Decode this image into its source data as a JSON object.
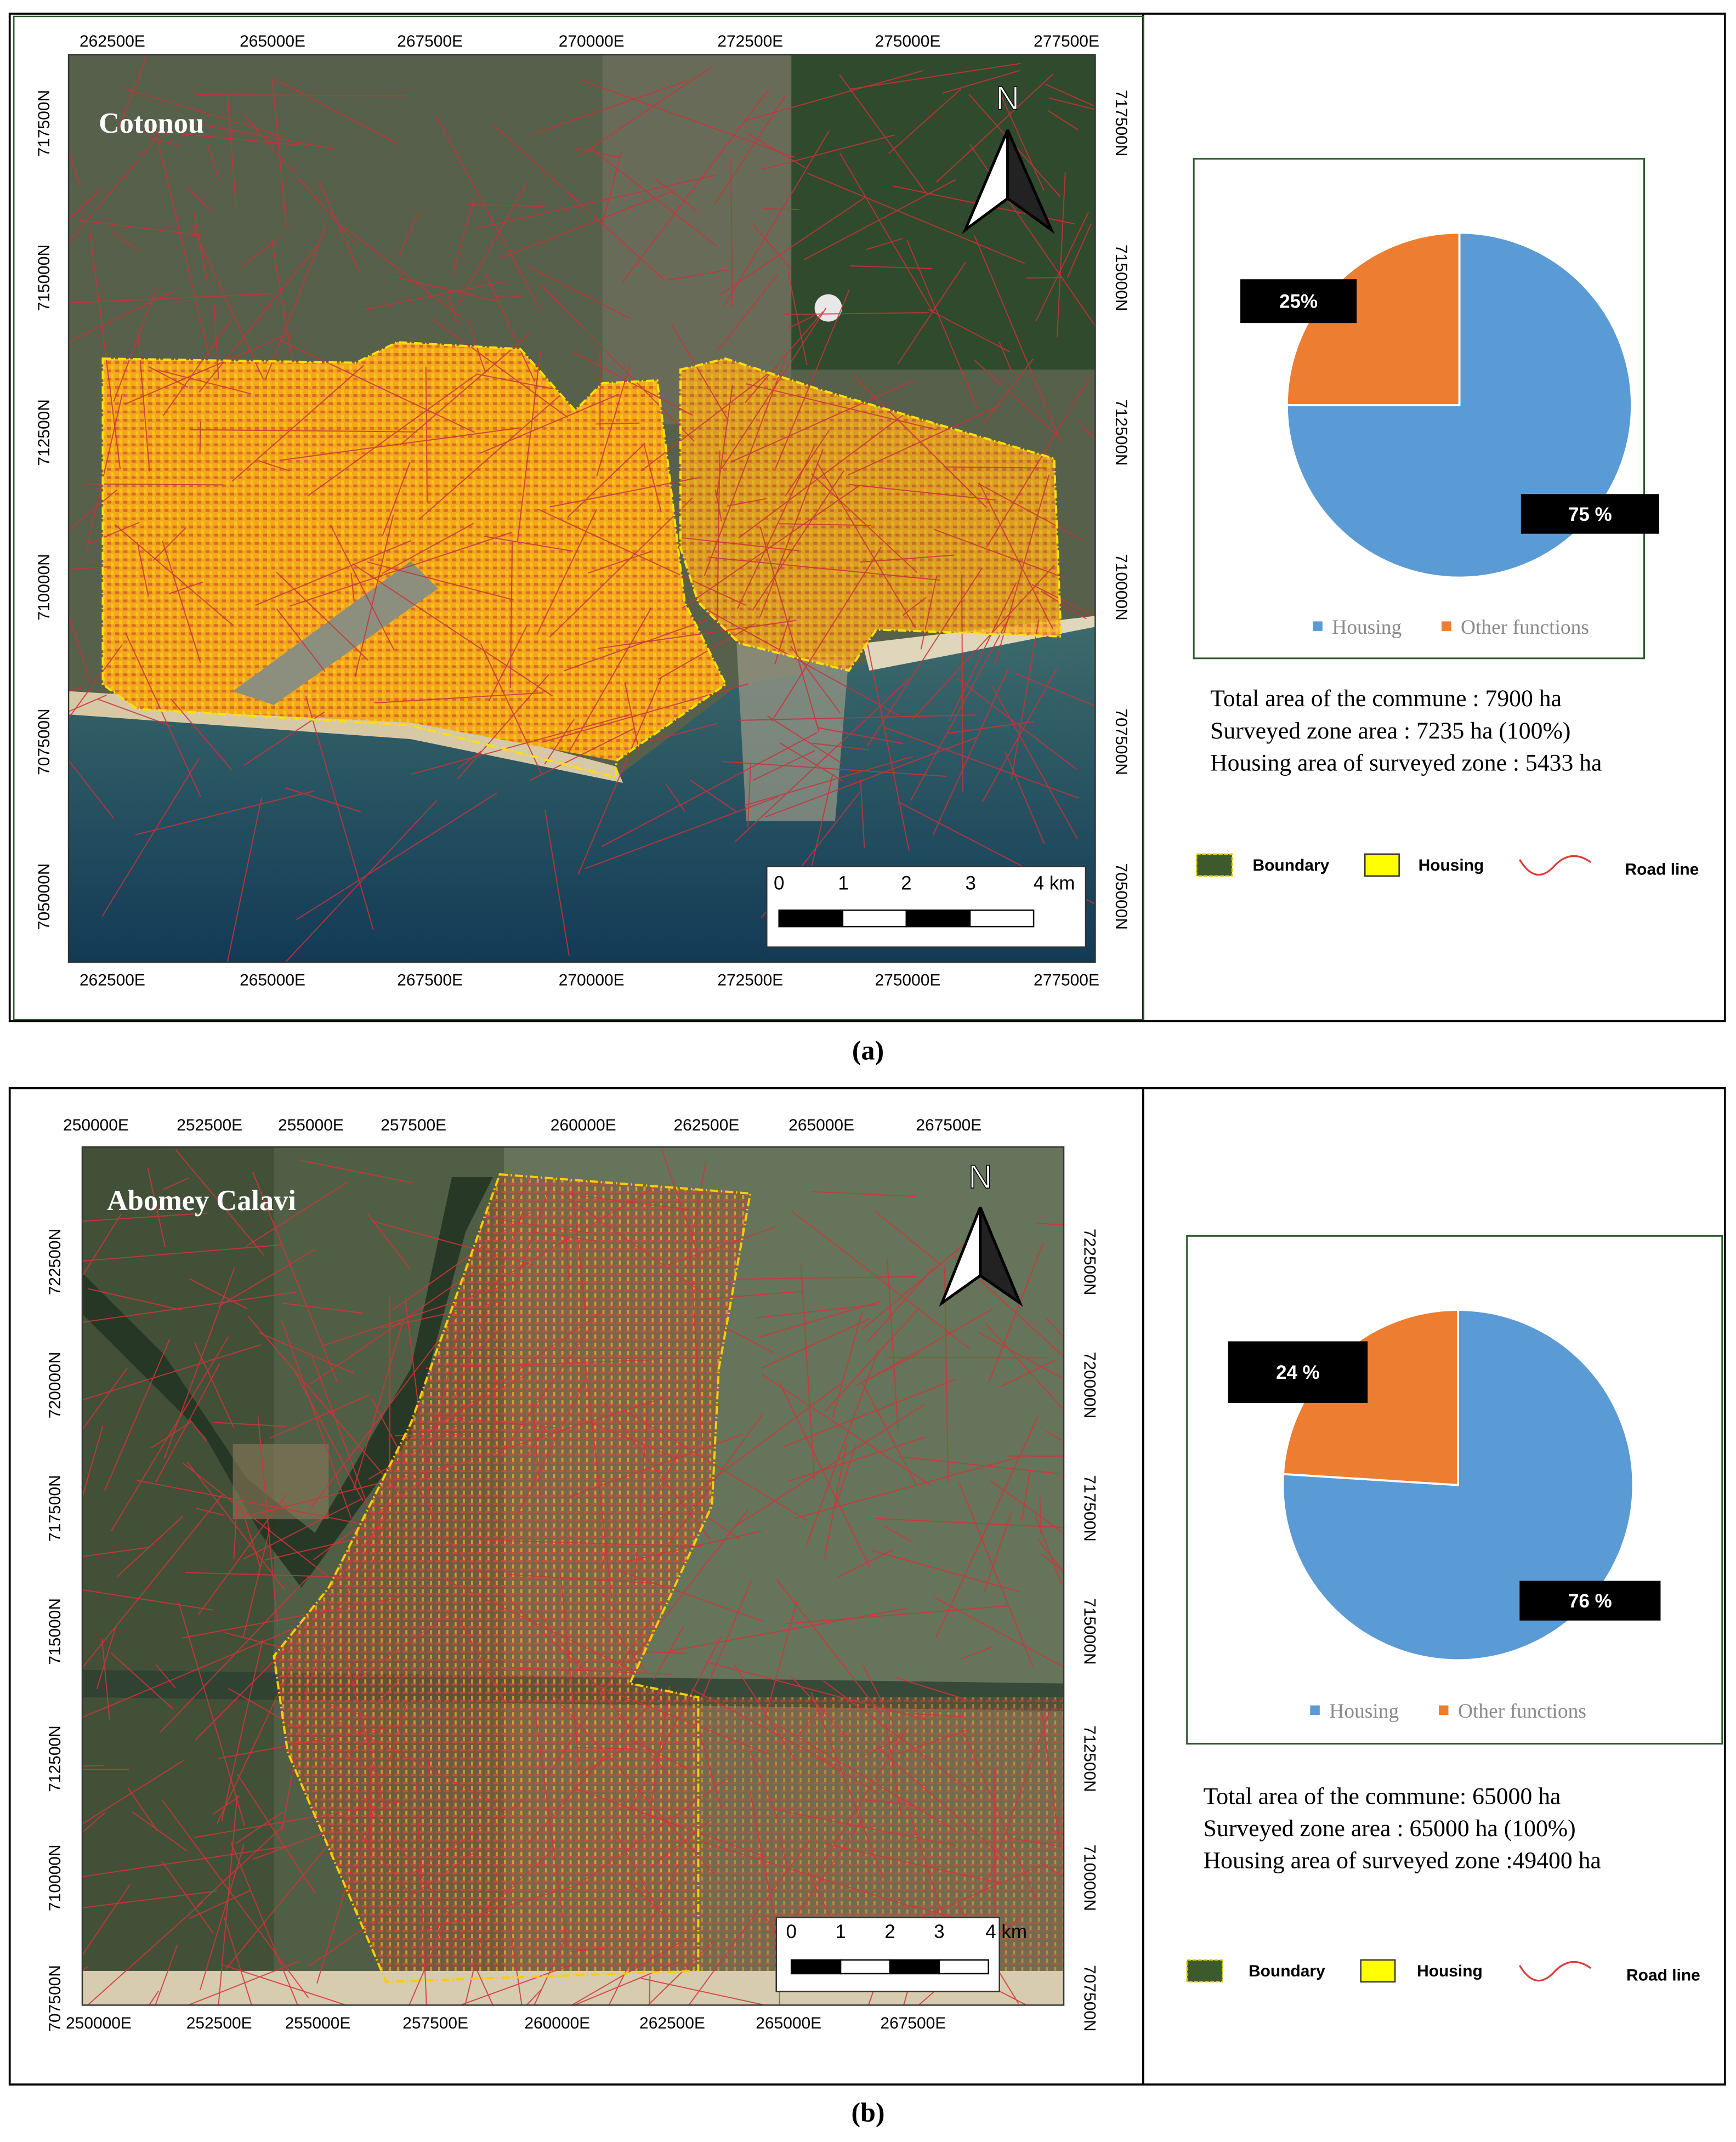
{
  "chart_data": [
    {
      "type": "pie",
      "categories": [
        "Housing",
        "Other functions"
      ],
      "values": [
        75,
        25
      ],
      "value_labels": [
        "75 %",
        "25%"
      ],
      "colors": [
        "#5b9bd5",
        "#ed7d31"
      ]
    },
    {
      "type": "pie",
      "categories": [
        "Housing",
        "Other functions"
      ],
      "values": [
        76,
        24
      ],
      "value_labels": [
        "76 %",
        "24 %"
      ],
      "colors": [
        "#5b9bd5",
        "#ed7d31"
      ]
    }
  ],
  "maps": [
    {
      "title": "Cotonou",
      "xticks": [
        "262500E",
        "265000E",
        "267500E",
        "270000E",
        "272500E",
        "275000E",
        "277500E"
      ],
      "yticks": [
        "717500N",
        "715000N",
        "712500N",
        "710000N",
        "707500N",
        "705000N"
      ],
      "north": "N",
      "scale": [
        "0",
        "1",
        "2",
        "3",
        "4 km"
      ]
    },
    {
      "title": "Abomey Calavi",
      "xticks": [
        "250000E",
        "252500E",
        "255000E",
        "257500E",
        "260000E",
        "262500E",
        "265000E",
        "267500E"
      ],
      "yticks": [
        "722500N",
        "720000N",
        "717500N",
        "715000N",
        "712500N",
        "710000N",
        "707500N"
      ],
      "north": "N",
      "scale": [
        "0",
        "1",
        "2",
        "3",
        "4 km"
      ]
    }
  ],
  "stats": [
    [
      "Total area of the commune : 7900 ha",
      "Surveyed  zone area : 7235 ha (100%)",
      "Housing area of surveyed zone : 5433 ha"
    ],
    [
      "Total area of the commune: 65000 ha",
      "Surveyed zone area : 65000 ha (100%)",
      "Housing area of surveyed zone :49400 ha"
    ]
  ],
  "legend": [
    [
      "Boundary",
      "Housing",
      "Road line"
    ],
    [
      "Boundary",
      "Housing",
      "Road line"
    ]
  ],
  "captions": [
    "(a)",
    "(b)"
  ]
}
